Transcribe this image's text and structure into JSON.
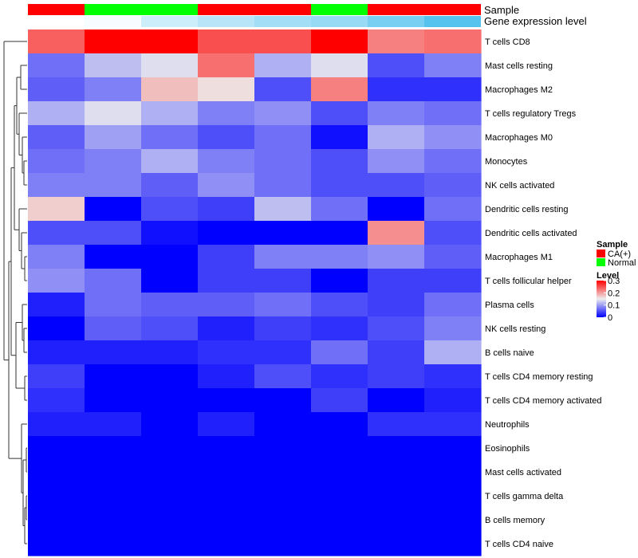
{
  "chart_data": {
    "type": "heatmap",
    "annotation_rows": [
      {
        "label": "Sample",
        "values": [
          "CA(+)",
          "Normal",
          "Normal",
          "CA(+)",
          "CA(+)",
          "Normal",
          "CA(+)",
          "CA(+)"
        ]
      },
      {
        "label": "Gene expression level",
        "values": [
          0.0,
          0.05,
          0.3,
          0.42,
          0.55,
          0.62,
          0.8,
          1.0
        ]
      }
    ],
    "rows": [
      "T cells CD8",
      "Mast cells resting",
      "Macrophages M2",
      "T cells regulatory  Tregs",
      "Macrophages M0",
      "Monocytes",
      "NK cells activated",
      "Dendritic cells resting",
      "Dendritic cells activated",
      "Macrophages M1",
      "T cells follicular helper",
      "Plasma cells",
      "NK cells resting",
      "B cells naive",
      "T cells CD4 memory resting",
      "T cells CD4 memory activated",
      "Neutrophils",
      "Eosinophils",
      "Mast cells activated",
      "T cells gamma delta",
      "B cells memory",
      "T cells CD4 naive"
    ],
    "values": [
      [
        0.24,
        0.3,
        0.3,
        0.25,
        0.25,
        0.3,
        0.22,
        0.23
      ],
      [
        0.07,
        0.12,
        0.14,
        0.23,
        0.11,
        0.14,
        0.05,
        0.08
      ],
      [
        0.06,
        0.08,
        0.18,
        0.16,
        0.05,
        0.22,
        0.03,
        0.03
      ],
      [
        0.11,
        0.14,
        0.11,
        0.08,
        0.09,
        0.05,
        0.08,
        0.07
      ],
      [
        0.06,
        0.1,
        0.07,
        0.05,
        0.07,
        0.01,
        0.11,
        0.09
      ],
      [
        0.07,
        0.08,
        0.11,
        0.08,
        0.07,
        0.05,
        0.09,
        0.07
      ],
      [
        0.08,
        0.08,
        0.06,
        0.09,
        0.07,
        0.05,
        0.05,
        0.06
      ],
      [
        0.17,
        0.0,
        0.05,
        0.04,
        0.12,
        0.07,
        0.0,
        0.07
      ],
      [
        0.05,
        0.05,
        0.01,
        0.0,
        0.0,
        0.0,
        0.21,
        0.05
      ],
      [
        0.08,
        0.0,
        0.0,
        0.04,
        0.08,
        0.08,
        0.09,
        0.06
      ],
      [
        0.09,
        0.07,
        0.0,
        0.04,
        0.04,
        0.0,
        0.04,
        0.04
      ],
      [
        0.02,
        0.07,
        0.06,
        0.06,
        0.07,
        0.05,
        0.04,
        0.07
      ],
      [
        0.0,
        0.06,
        0.05,
        0.02,
        0.04,
        0.03,
        0.05,
        0.08
      ],
      [
        0.02,
        0.02,
        0.02,
        0.03,
        0.03,
        0.07,
        0.04,
        0.11
      ],
      [
        0.04,
        0.0,
        0.0,
        0.02,
        0.05,
        0.03,
        0.04,
        0.03
      ],
      [
        0.03,
        0.0,
        0.0,
        0.0,
        0.0,
        0.04,
        0.0,
        0.02
      ],
      [
        0.02,
        0.02,
        0.0,
        0.02,
        0.0,
        0.0,
        0.03,
        0.03
      ],
      [
        0.0,
        0.0,
        0.0,
        0.0,
        0.0,
        0.0,
        0.0,
        0.0
      ],
      [
        0.0,
        0.0,
        0.0,
        0.0,
        0.0,
        0.0,
        0.0,
        0.0
      ],
      [
        0.0,
        0.0,
        0.0,
        0.0,
        0.0,
        0.0,
        0.0,
        0.0
      ],
      [
        0.0,
        0.0,
        0.0,
        0.0,
        0.0,
        0.0,
        0.0,
        0.0
      ],
      [
        0.0,
        0.0,
        0.0,
        0.0,
        0.0,
        0.0,
        0.0,
        0.0
      ]
    ],
    "color_scale": {
      "min": 0,
      "mid": 0.15,
      "max": 0.3,
      "low": "#0000ff",
      "midcolor": "#eeeeee",
      "high": "#ff0000"
    },
    "legend": {
      "sample_title": "Sample",
      "sample_items": [
        {
          "label": "CA(+)",
          "color": "#ff0000"
        },
        {
          "label": "Normal",
          "color": "#00ff00"
        }
      ],
      "level_title": "Level",
      "level_ticks": [
        "0.3",
        "0.2",
        "0.1",
        "0"
      ],
      "level_tick_values": [
        0.3,
        0.2,
        0.1,
        0
      ],
      "placement": "right"
    },
    "colors": {
      "ca": "#ff0000",
      "normal": "#00ff00",
      "gene_low": "#ffffff",
      "gene_high": "#56c3ee"
    }
  }
}
